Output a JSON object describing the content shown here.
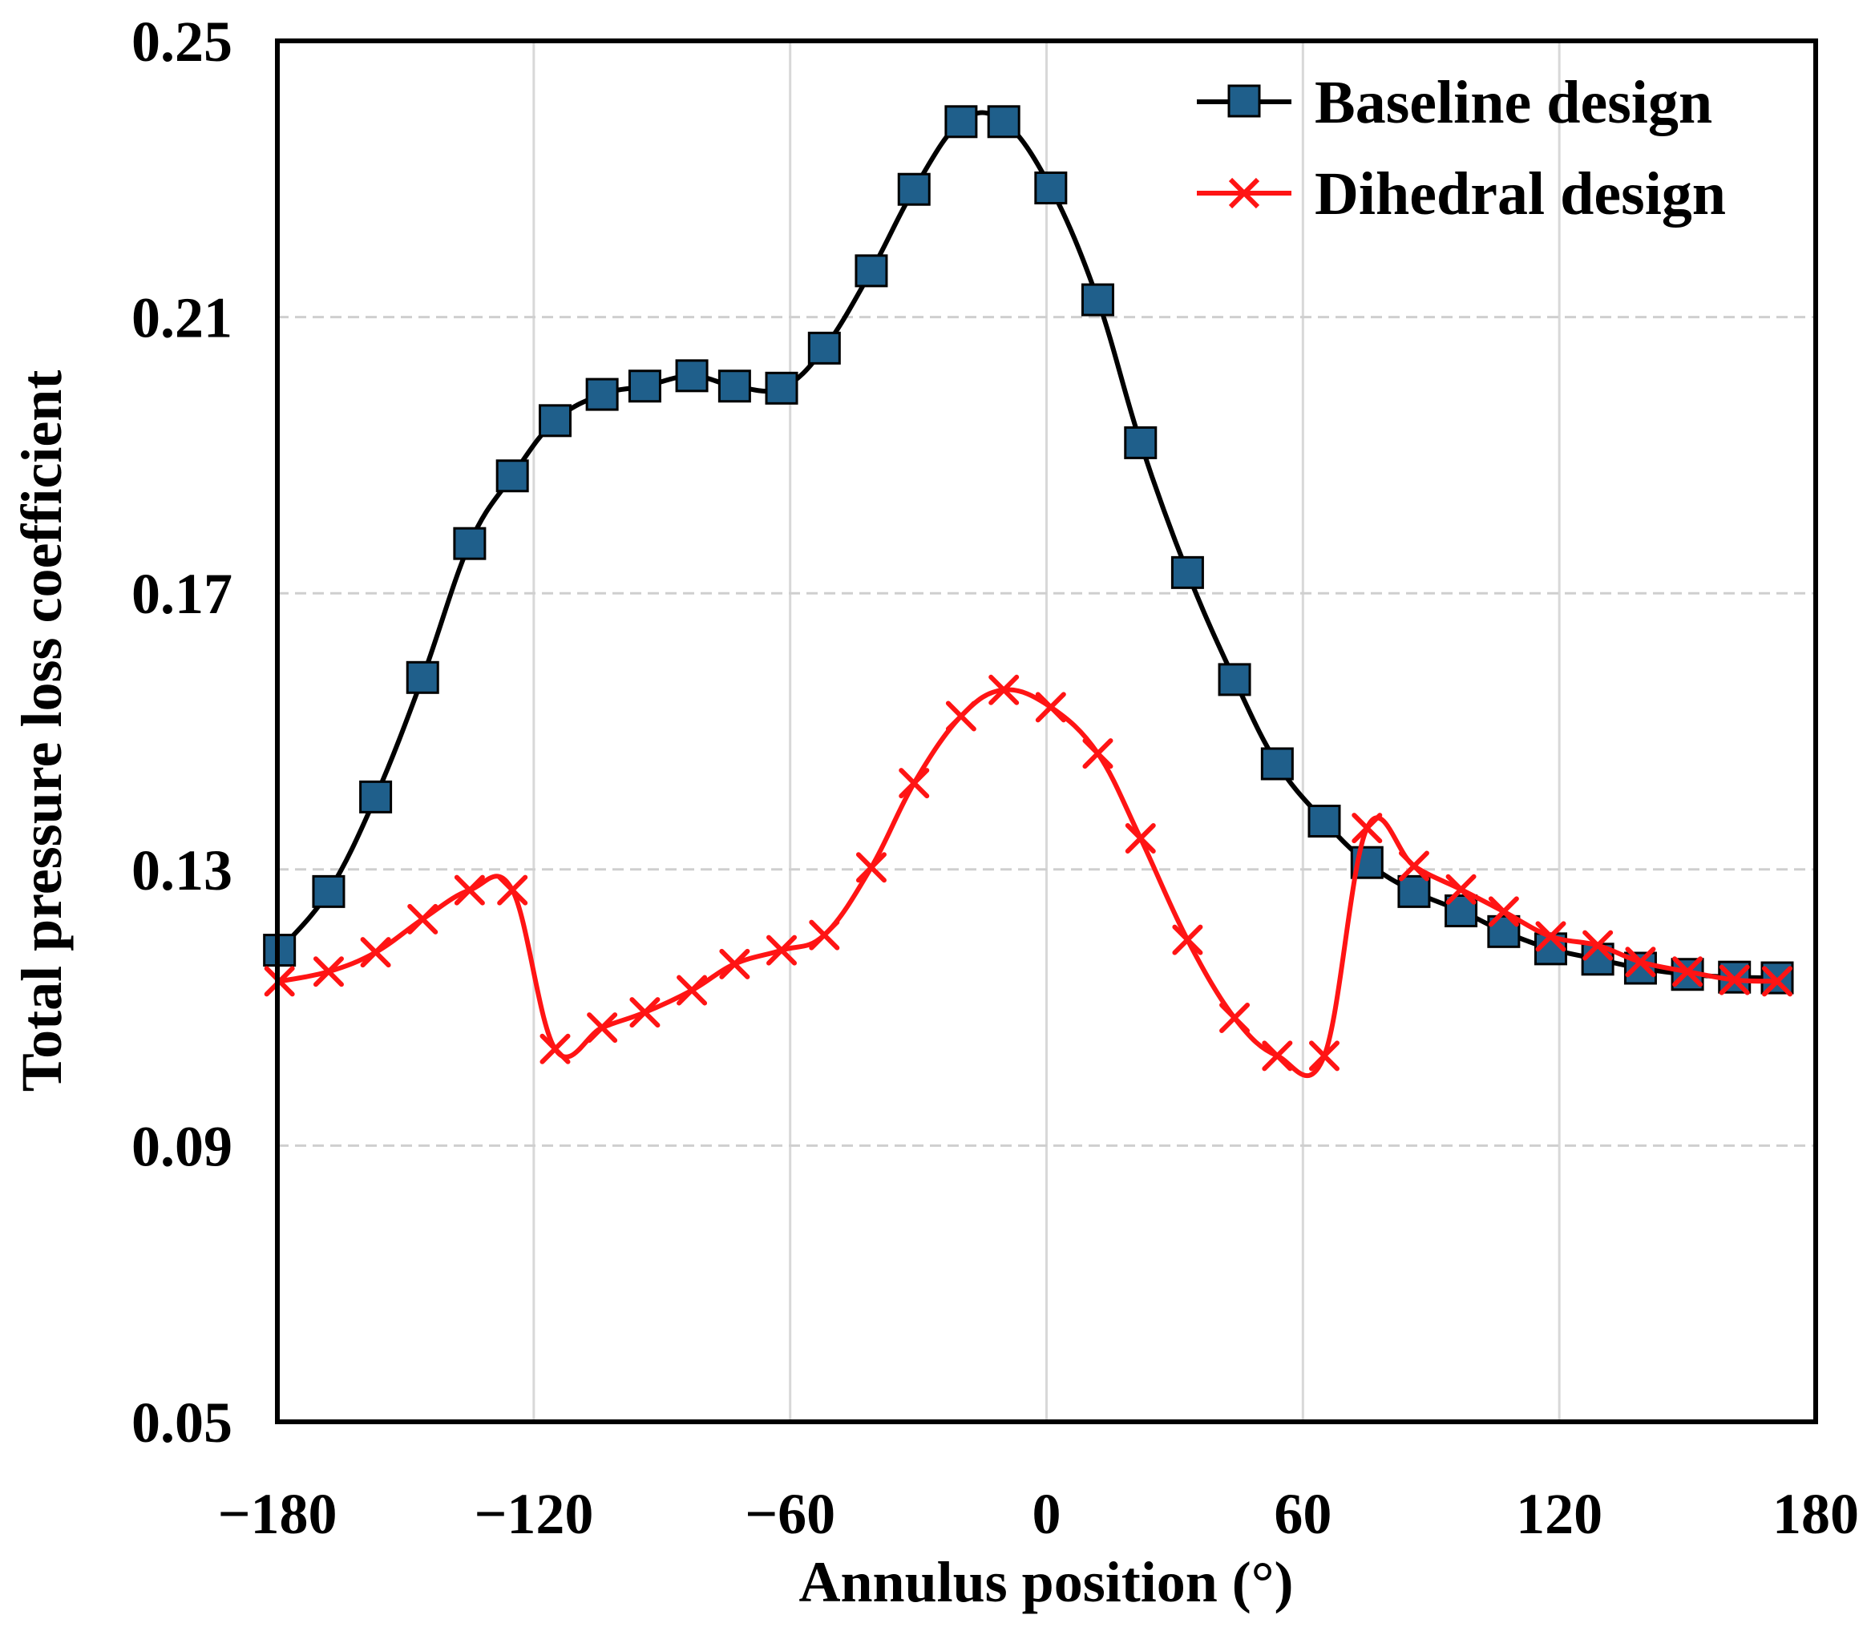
{
  "chart_data": {
    "type": "line",
    "title": "",
    "xlabel": "Annulus position (°)",
    "ylabel": "Total pressure loss coefficient",
    "xlim": [
      -180,
      180
    ],
    "ylim": [
      0.05,
      0.25
    ],
    "xticks": [
      -180,
      -120,
      -60,
      0,
      60,
      120,
      180
    ],
    "xtick_labels": [
      "−180",
      "−120",
      "−60",
      "0",
      "60",
      "120",
      "180"
    ],
    "yticks": [
      0.05,
      0.09,
      0.13,
      0.17,
      0.21,
      0.25
    ],
    "ytick_labels": [
      "0.05",
      "0.09",
      "0.13",
      "0.17",
      "0.21",
      "0.25"
    ],
    "grid": true,
    "legend_position": "top-right",
    "series": [
      {
        "name": "Baseline design",
        "color": "#000000",
        "marker": "square",
        "marker_color": "#1f5f8b",
        "x": [
          -179.5,
          -168,
          -157,
          -146,
          -135,
          -125,
          -115,
          -104,
          -94,
          -83,
          -73,
          -62,
          -52,
          -41,
          -31,
          -20,
          -10,
          1,
          12,
          22,
          33,
          44,
          54,
          65,
          75,
          86,
          97,
          107,
          118,
          129,
          139,
          150,
          161,
          171
        ],
        "y": [
          0.1183,
          0.1268,
          0.1405,
          0.1578,
          0.1772,
          0.187,
          0.195,
          0.1988,
          0.2,
          0.2015,
          0.2,
          0.1997,
          0.2055,
          0.2167,
          0.2285,
          0.2383,
          0.2383,
          0.2287,
          0.2125,
          0.1918,
          0.173,
          0.1575,
          0.1453,
          0.137,
          0.131,
          0.1268,
          0.124,
          0.121,
          0.1185,
          0.117,
          0.1157,
          0.1148,
          0.1144,
          0.1143
        ]
      },
      {
        "name": "Dihedral design",
        "color": "#ff1414",
        "marker": "x",
        "marker_color": "#ff1414",
        "x": [
          -179.5,
          -168,
          -157,
          -146,
          -135,
          -125,
          -115,
          -104,
          -94,
          -83,
          -73,
          -62,
          -52,
          -41,
          -31,
          -20,
          -10,
          1,
          12,
          22,
          33,
          44,
          54,
          65,
          75,
          86,
          97,
          107,
          118,
          129,
          139,
          150,
          161,
          171
        ],
        "y": [
          0.1138,
          0.1152,
          0.118,
          0.1228,
          0.127,
          0.127,
          0.104,
          0.1071,
          0.1093,
          0.1125,
          0.1163,
          0.1183,
          0.1205,
          0.1303,
          0.1425,
          0.1522,
          0.156,
          0.1535,
          0.1468,
          0.1345,
          0.1198,
          0.1085,
          0.103,
          0.103,
          0.136,
          0.1305,
          0.1271,
          0.1239,
          0.1203,
          0.119,
          0.1166,
          0.1152,
          0.114,
          0.1138
        ]
      }
    ]
  }
}
